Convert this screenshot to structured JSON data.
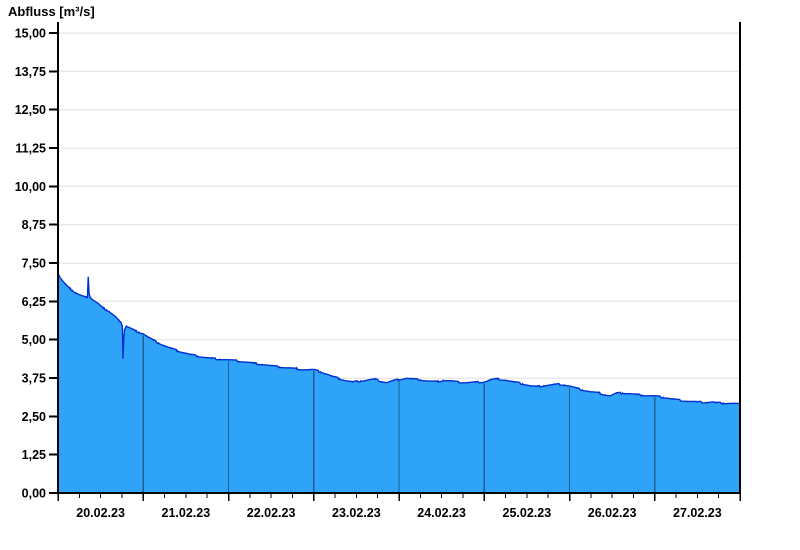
{
  "title": "Abfluss [m³/s]",
  "colors": {
    "area_fill": "#2EA3F8",
    "line": "#0030D0",
    "day_gridline": "#235E92",
    "h_gridline": "#E9E9E9",
    "axis": "#000000",
    "background": "#FFFFFF",
    "label_text": "#000000"
  },
  "chart_data": {
    "type": "area",
    "title": "Abfluss [m³/s]",
    "ylabel": "Abfluss [m³/s]",
    "xlabel": "",
    "ylim": [
      0,
      15
    ],
    "ytick_step": 1.25,
    "ytick_labels": [
      "0,00",
      "1,25",
      "2,50",
      "3,75",
      "5,00",
      "6,25",
      "7,50",
      "8,75",
      "10,00",
      "11,25",
      "12,50",
      "13,75",
      "15,00"
    ],
    "ytick_values": [
      0,
      1.25,
      2.5,
      3.75,
      5.0,
      6.25,
      7.5,
      8.75,
      10.0,
      11.25,
      12.5,
      13.75,
      15.0
    ],
    "x_day_labels": [
      "20.02.23",
      "21.02.23",
      "22.02.23",
      "23.02.23",
      "24.02.23",
      "25.02.23",
      "26.02.23",
      "27.02.23"
    ],
    "x_domain_days": 8,
    "x_minor_tick_days": 0.25,
    "grid": "horizontal-light, vertical-day-boundaries-inside-area",
    "legend": "none",
    "series": [
      {
        "name": "Abfluss",
        "unit": "m³/s",
        "x_days": [
          0,
          0.02,
          0.05,
          0.08,
          0.11,
          0.14,
          0.17,
          0.21,
          0.25,
          0.29,
          0.33,
          0.345,
          0.355,
          0.365,
          0.38,
          0.4,
          0.43,
          0.47,
          0.5,
          0.53,
          0.57,
          0.6,
          0.63,
          0.67,
          0.7,
          0.72,
          0.745,
          0.755,
          0.762,
          0.772,
          0.78,
          0.8,
          0.83,
          0.87,
          0.91,
          0.95,
          1.0,
          1.06,
          1.12,
          1.18,
          1.25,
          1.32,
          1.4,
          1.48,
          1.56,
          1.64,
          1.72,
          1.8,
          1.9,
          2.0,
          2.1,
          2.2,
          2.3,
          2.4,
          2.5,
          2.6,
          2.7,
          2.8,
          2.9,
          3.0,
          3.08,
          3.15,
          3.22,
          3.3,
          3.38,
          3.46,
          3.55,
          3.65,
          3.72,
          3.8,
          3.86,
          3.93,
          4.0,
          4.08,
          4.15,
          4.25,
          4.35,
          4.45,
          4.52,
          4.6,
          4.7,
          4.8,
          4.9,
          5.0,
          5.08,
          5.15,
          5.25,
          5.35,
          5.45,
          5.55,
          5.62,
          5.7,
          5.8,
          5.88,
          5.94,
          6.0,
          6.08,
          6.15,
          6.25,
          6.35,
          6.42,
          6.48,
          6.55,
          6.62,
          6.7,
          6.78,
          6.85,
          6.93,
          7.0,
          7.1,
          7.2,
          7.3,
          7.4,
          7.5,
          7.6,
          7.68,
          7.72,
          7.8,
          7.9,
          8.0
        ],
        "values": [
          7.18,
          7.05,
          6.93,
          6.83,
          6.74,
          6.66,
          6.6,
          6.53,
          6.47,
          6.42,
          6.38,
          6.36,
          7.05,
          6.5,
          6.38,
          6.32,
          6.26,
          6.18,
          6.1,
          6.03,
          5.97,
          5.92,
          5.85,
          5.76,
          5.67,
          5.6,
          5.52,
          5.45,
          4.38,
          5.05,
          5.32,
          5.44,
          5.4,
          5.34,
          5.28,
          5.24,
          5.19,
          5.08,
          4.98,
          4.89,
          4.8,
          4.72,
          4.64,
          4.57,
          4.51,
          4.46,
          4.42,
          4.39,
          4.36,
          4.34,
          4.31,
          4.27,
          4.23,
          4.19,
          4.15,
          4.11,
          4.08,
          4.05,
          4.02,
          4.02,
          3.95,
          3.88,
          3.8,
          3.73,
          3.66,
          3.62,
          3.65,
          3.69,
          3.71,
          3.63,
          3.6,
          3.66,
          3.7,
          3.74,
          3.72,
          3.69,
          3.65,
          3.63,
          3.67,
          3.66,
          3.61,
          3.6,
          3.61,
          3.62,
          3.7,
          3.72,
          3.68,
          3.62,
          3.56,
          3.49,
          3.47,
          3.5,
          3.53,
          3.55,
          3.52,
          3.49,
          3.42,
          3.36,
          3.3,
          3.26,
          3.2,
          3.17,
          3.25,
          3.26,
          3.24,
          3.21,
          3.19,
          3.17,
          3.16,
          3.12,
          3.07,
          3.02,
          2.99,
          2.97,
          2.95,
          2.97,
          2.94,
          2.93,
          2.92,
          2.9
        ]
      }
    ]
  }
}
